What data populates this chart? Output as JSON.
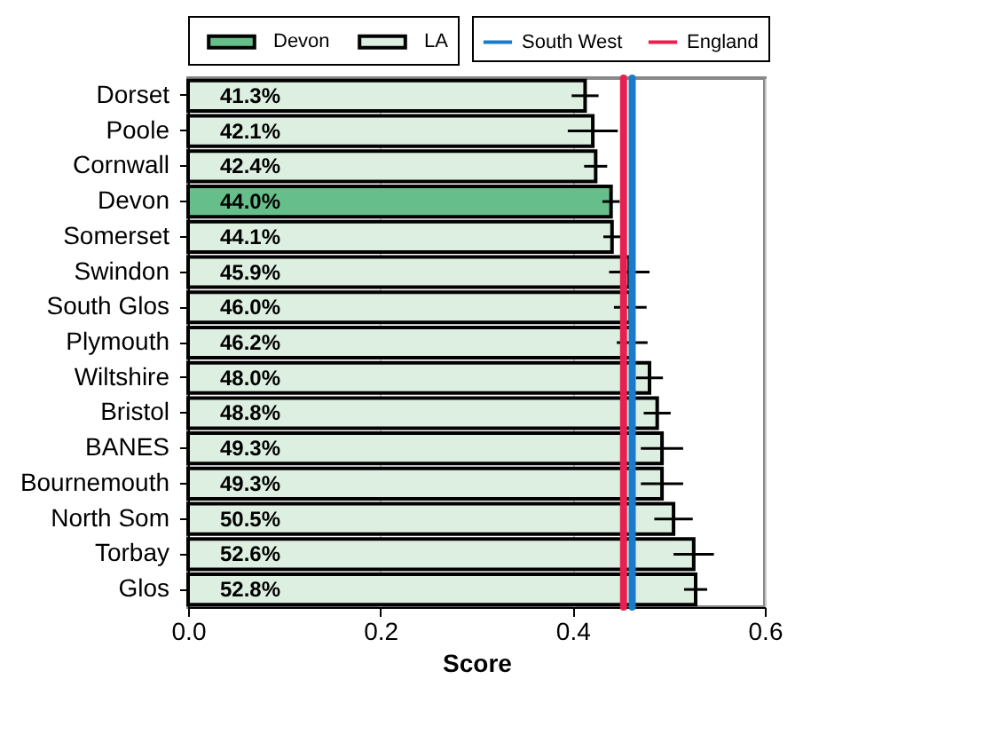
{
  "chart_data": {
    "type": "bar",
    "orientation": "horizontal",
    "xlabel": "Score",
    "categories": [
      "Dorset",
      "Poole",
      "Cornwall",
      "Devon",
      "Somerset",
      "Swindon",
      "South Glos",
      "Plymouth",
      "Wiltshire",
      "Bristol",
      "BANES",
      "Bournemouth",
      "North Som",
      "Torbay",
      "Glos"
    ],
    "series": [
      {
        "name": "Devon",
        "color": "#66bf8a",
        "values": [
          null,
          null,
          null,
          0.44,
          null,
          null,
          null,
          null,
          null,
          null,
          null,
          null,
          null,
          null,
          null
        ],
        "errors": [
          null,
          null,
          null,
          0.009,
          null,
          null,
          null,
          null,
          null,
          null,
          null,
          null,
          null,
          null,
          null
        ],
        "value_labels": [
          null,
          null,
          null,
          "44.0%",
          null,
          null,
          null,
          null,
          null,
          null,
          null,
          null,
          null,
          null,
          null
        ]
      },
      {
        "name": "LA",
        "color": "#dcefe0",
        "values": [
          0.413,
          0.421,
          0.424,
          null,
          0.441,
          0.459,
          0.46,
          0.462,
          0.48,
          0.488,
          0.493,
          0.493,
          0.505,
          0.526,
          0.528
        ],
        "errors": [
          0.014,
          0.026,
          0.012,
          null,
          0.009,
          0.021,
          0.017,
          0.016,
          0.014,
          0.014,
          0.022,
          0.022,
          0.02,
          0.021,
          0.012
        ],
        "value_labels": [
          "41.3%",
          "42.1%",
          "42.4%",
          null,
          "44.1%",
          "45.9%",
          "46.0%",
          "46.2%",
          "48.0%",
          "48.8%",
          "49.3%",
          "49.3%",
          "50.5%",
          "52.6%",
          "52.8%"
        ]
      }
    ],
    "ref_lines": [
      {
        "axis": "x",
        "value": 0.462,
        "label": "South West",
        "color": "#1a7cc8"
      },
      {
        "axis": "x",
        "value": 0.453,
        "label": "England",
        "color": "#e8204f"
      }
    ],
    "xlim": [
      0,
      0.6
    ],
    "xticks": [
      {
        "value": 0,
        "label": "0.0"
      },
      0.2,
      0.4,
      0.6
    ],
    "grid": "x",
    "legend": "top"
  }
}
